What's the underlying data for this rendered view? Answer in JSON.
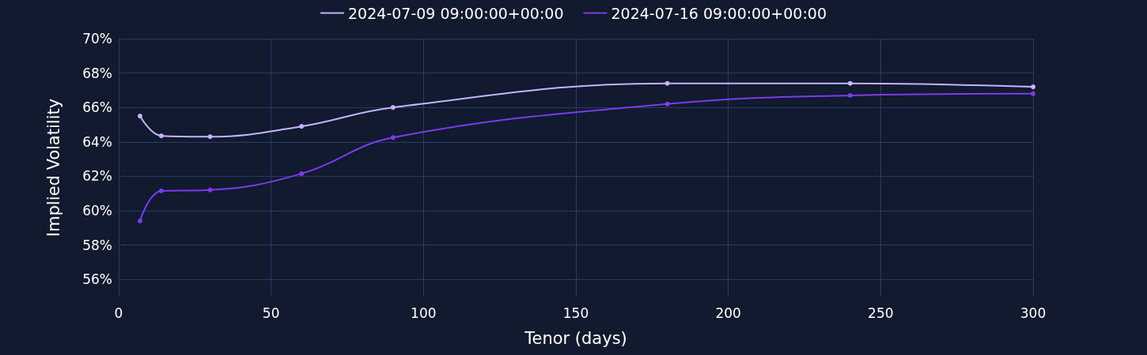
{
  "chart_data": {
    "type": "line",
    "xlabel": "Tenor (days)",
    "ylabel": "Implied Volatility",
    "series": [
      {
        "name": "2024-07-09 09:00:00+00:00",
        "color": "#c4b5fd",
        "x": [
          7,
          14,
          30,
          60,
          90,
          180,
          240,
          300
        ],
        "values": [
          65.5,
          64.35,
          64.3,
          64.9,
          66.0,
          67.4,
          67.4,
          67.2
        ]
      },
      {
        "name": "2024-07-16 09:00:00+00:00",
        "color": "#7c3aed",
        "x": [
          7,
          14,
          30,
          60,
          90,
          180,
          240,
          300
        ],
        "values": [
          59.4,
          61.15,
          61.2,
          62.15,
          64.25,
          66.2,
          66.7,
          66.8
        ]
      }
    ],
    "xlim": [
      0,
      300
    ],
    "xticks": [
      0,
      50,
      100,
      150,
      200,
      250,
      300
    ],
    "ylim": [
      55,
      70
    ],
    "yticks": [
      {
        "value": 56,
        "label": "56%"
      },
      {
        "value": 58,
        "label": "58%"
      },
      {
        "value": 60,
        "label": "60%"
      },
      {
        "value": 62,
        "label": "62%"
      },
      {
        "value": 64,
        "label": "64%"
      },
      {
        "value": 66,
        "label": "66%"
      },
      {
        "value": 68,
        "label": "68%"
      },
      {
        "value": 70,
        "label": "70%"
      }
    ],
    "grid": true,
    "legend": "top",
    "marker": "circle",
    "line_style": "solid"
  }
}
